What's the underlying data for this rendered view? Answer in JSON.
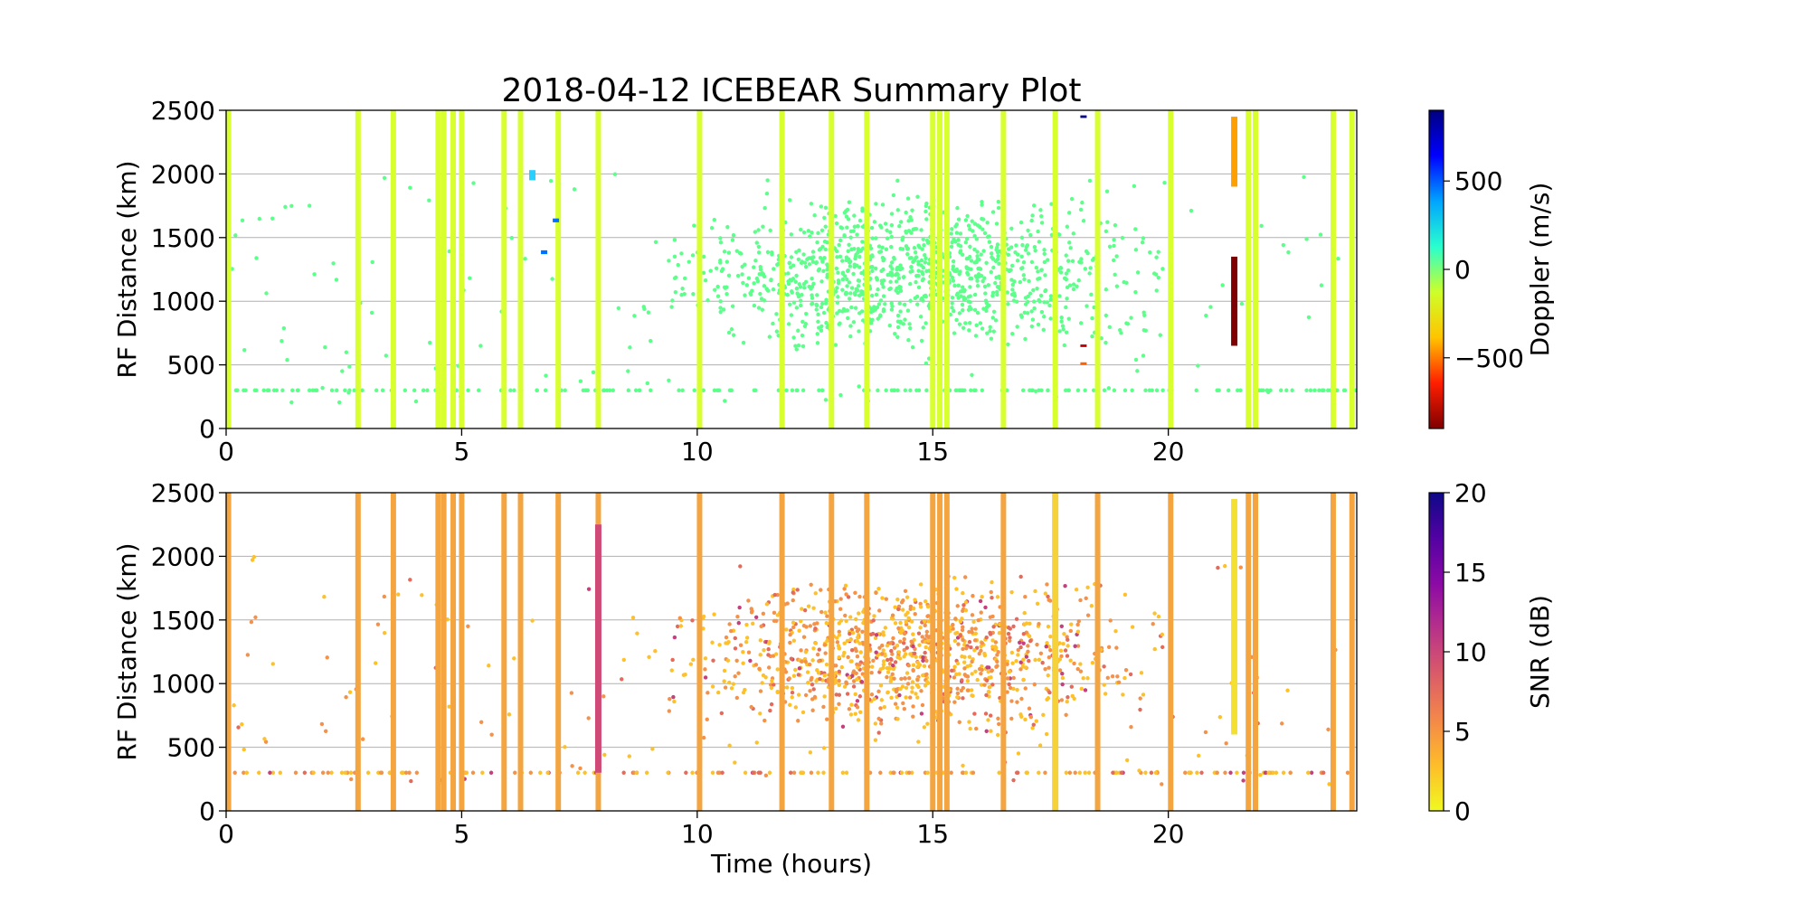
{
  "title": "2018-04-12 ICEBEAR Summary Plot",
  "chart_data": [
    {
      "type": "scatter",
      "name": "doppler-panel",
      "ylabel": "RF Distance (km)",
      "xlabel": "",
      "xlim": [
        0,
        24
      ],
      "ylim": [
        0,
        2500
      ],
      "xticks": [
        0,
        5,
        10,
        15,
        20
      ],
      "yticks": [
        0,
        500,
        1000,
        1500,
        2000,
        2500
      ],
      "grid": "horizontal",
      "colorbar": {
        "label": "Doppler (m/s)",
        "range": [
          -900,
          900
        ],
        "ticks": [
          500,
          0,
          -500
        ],
        "tick_labels": [
          "500",
          "0",
          "−500"
        ],
        "colormap": "jet_r",
        "stops": [
          "#00007f",
          "#0000ff",
          "#00a4ff",
          "#29ffce",
          "#ceff29",
          "#ffc400",
          "#ff1e00",
          "#7f0000"
        ]
      },
      "point_color": "#5cff8a",
      "stripe_color": "#d8ff2e",
      "stripes": [
        0.05,
        2.8,
        3.55,
        4.5,
        4.62,
        4.82,
        5.0,
        5.9,
        6.25,
        7.05,
        7.9,
        10.05,
        11.8,
        12.85,
        13.6,
        15.0,
        15.15,
        15.3,
        16.5,
        17.6,
        18.5,
        20.05,
        21.7,
        21.85,
        23.5,
        23.9
      ],
      "highlights": [
        {
          "x": 21.4,
          "y0": 650,
          "y1": 1350,
          "color": "#7f0000"
        },
        {
          "x": 21.4,
          "y0": 1900,
          "y1": 2450,
          "color": "#ffa000"
        },
        {
          "x": 18.2,
          "y0": 2440,
          "y1": 2460,
          "color": "#00007f"
        },
        {
          "x": 6.75,
          "y0": 1370,
          "y1": 1400,
          "color": "#0070ff"
        },
        {
          "x": 7.0,
          "y0": 1620,
          "y1": 1650,
          "color": "#0070ff"
        },
        {
          "x": 6.5,
          "y0": 1950,
          "y1": 2030,
          "color": "#29d0ff"
        },
        {
          "x": 18.2,
          "y0": 640,
          "y1": 660,
          "color": "#c00000"
        },
        {
          "x": 18.2,
          "y0": 500,
          "y1": 520,
          "color": "#ff6000"
        }
      ]
    },
    {
      "type": "scatter",
      "name": "snr-panel",
      "ylabel": "RF Distance (km)",
      "xlabel": "Time (hours)",
      "xlim": [
        0,
        24
      ],
      "ylim": [
        0,
        2500
      ],
      "xticks": [
        0,
        5,
        10,
        15,
        20
      ],
      "yticks": [
        0,
        500,
        1000,
        1500,
        2000,
        2500
      ],
      "grid": "horizontal",
      "colorbar": {
        "label": "SNR (dB)",
        "range": [
          0,
          20
        ],
        "ticks": [
          20,
          15,
          10,
          5,
          0
        ],
        "tick_labels": [
          "20",
          "15",
          "10",
          "5",
          "0"
        ],
        "colormap": "plasma_r",
        "stops": [
          "#0d0887",
          "#5302a3",
          "#8b0aa5",
          "#b83289",
          "#db5c68",
          "#f48849",
          "#febd2a",
          "#f0f921"
        ]
      },
      "point_color": "#f8b030",
      "stripe_color": "#f5a540",
      "stripes": [
        0.05,
        2.8,
        3.55,
        4.5,
        4.62,
        4.82,
        5.0,
        5.9,
        6.25,
        7.05,
        7.9,
        10.05,
        11.8,
        12.85,
        13.6,
        15.0,
        15.15,
        15.3,
        16.5,
        17.6,
        18.5,
        20.05,
        21.7,
        21.85,
        23.5,
        23.9
      ],
      "highlights": [
        {
          "x": 7.9,
          "y0": 300,
          "y1": 2250,
          "color": "#d04a78"
        },
        {
          "x": 21.4,
          "y0": 600,
          "y1": 2450,
          "color": "#f3e030"
        },
        {
          "x": 17.6,
          "y0": 0,
          "y1": 2500,
          "color": "#f6d23a"
        }
      ]
    }
  ]
}
